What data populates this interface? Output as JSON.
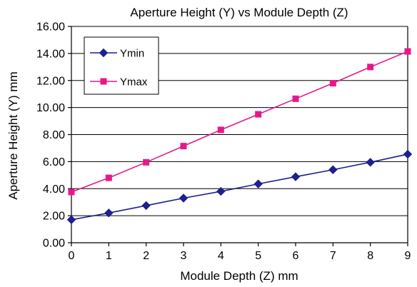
{
  "chart_data": {
    "type": "line",
    "title": "Aperture Height (Y) vs Module Depth (Z)",
    "xlabel": "Module Depth (Z) mm",
    "ylabel": "Aperture Height (Y) mm",
    "x": [
      0,
      1,
      2,
      3,
      4,
      5,
      6,
      7,
      8,
      9
    ],
    "xlim": [
      0,
      9
    ],
    "ylim": [
      0,
      16
    ],
    "x_ticks": [
      "0",
      "1",
      "2",
      "3",
      "4",
      "5",
      "6",
      "7",
      "8",
      "9"
    ],
    "y_ticks": [
      "0.00",
      "2.00",
      "4.00",
      "6.00",
      "8.00",
      "10.00",
      "12.00",
      "14.00",
      "16.00"
    ],
    "y_tick_values": [
      0,
      2,
      4,
      6,
      8,
      10,
      12,
      14,
      16
    ],
    "grid": "horizontal",
    "legend_position": "top-left",
    "series": [
      {
        "name": "Ymin",
        "marker": "diamond",
        "color": "#1f1f8f",
        "values": [
          1.7,
          2.2,
          2.75,
          3.3,
          3.8,
          4.35,
          4.88,
          5.4,
          5.95,
          6.55
        ]
      },
      {
        "name": "Ymax",
        "marker": "square",
        "color": "#e6198a",
        "values": [
          3.75,
          4.8,
          5.95,
          7.15,
          8.35,
          9.5,
          10.65,
          11.8,
          13.0,
          14.15
        ]
      }
    ]
  }
}
